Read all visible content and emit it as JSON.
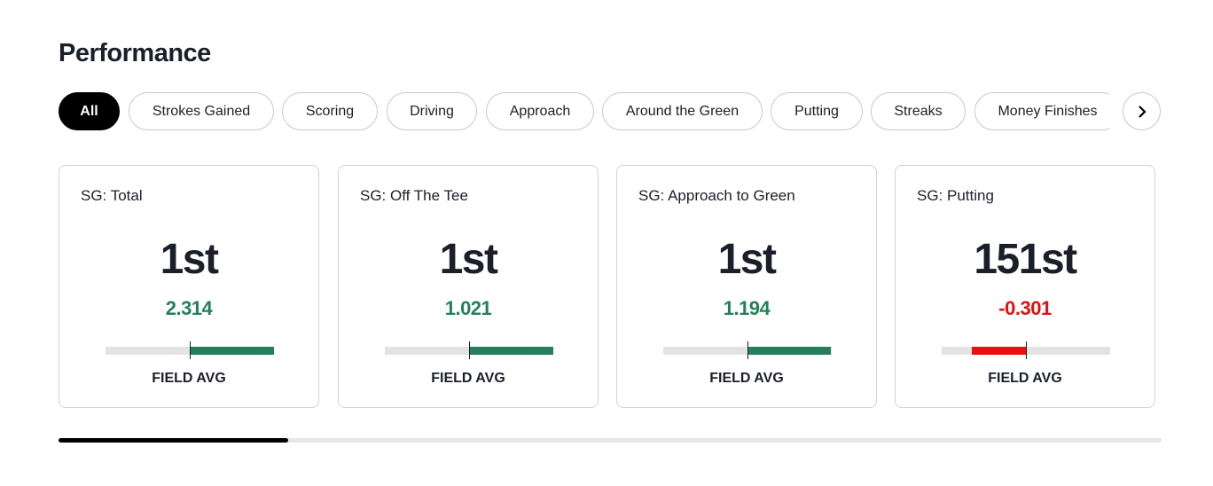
{
  "header": {
    "title": "Performance"
  },
  "tabs": [
    "All",
    "Strokes Gained",
    "Scoring",
    "Driving",
    "Approach",
    "Around the Green",
    "Putting",
    "Streaks",
    "Money Finishes"
  ],
  "cards": [
    {
      "title": "SG: Total",
      "rank": "1st",
      "value": "2.314",
      "bar_label": "FIELD AVG"
    },
    {
      "title": "SG: Off The Tee",
      "rank": "1st",
      "value": "1.021",
      "bar_label": "FIELD AVG"
    },
    {
      "title": "SG: Approach to Green",
      "rank": "1st",
      "value": "1.194",
      "bar_label": "FIELD AVG"
    },
    {
      "title": "SG: Putting",
      "rank": "151st",
      "value": "-0.301",
      "bar_label": "FIELD AVG"
    }
  ]
}
